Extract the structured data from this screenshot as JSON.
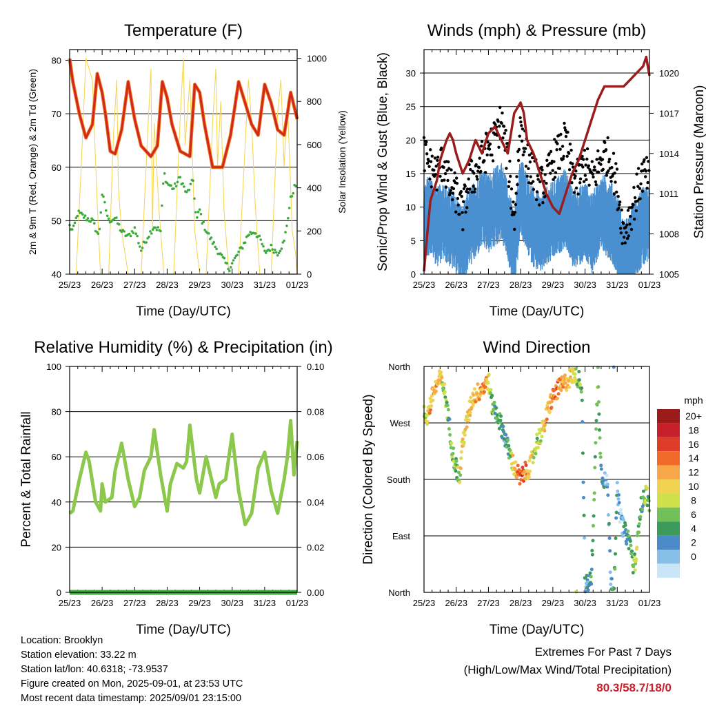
{
  "ticks_x": [
    "25/23",
    "26/23",
    "27/23",
    "28/23",
    "29/23",
    "30/23",
    "31/23",
    "01/23"
  ],
  "xlabel": "Time (Day/UTC)",
  "chart_data": [
    {
      "id": "temperature",
      "type": "line",
      "title": "Temperature (F)",
      "xlabel": "Time (Day/UTC)",
      "ylabel": "2m & 9m T (Red, Orange) & 2m Td (Green)",
      "y2label": "Solar Insolation (Yellow)",
      "ylim": [
        40,
        82
      ],
      "y2lim": [
        0,
        1040
      ],
      "yticks": [
        40,
        50,
        60,
        70,
        80
      ],
      "y2ticks": [
        0,
        200,
        400,
        600,
        800,
        1000
      ],
      "grid": true,
      "colors": {
        "t2m": "#d0281e",
        "t9m": "#f07a1a",
        "td2m": "#3daa3d",
        "solar": "#f6d34a"
      },
      "series": [
        {
          "key": "t2m",
          "x": [
            0,
            0.1,
            0.3,
            0.5,
            0.7,
            0.85,
            1.0,
            1.1,
            1.25,
            1.4,
            1.6,
            1.8,
            2.0,
            2.2,
            2.5,
            2.7,
            2.85,
            3.0,
            3.15,
            3.4,
            3.7,
            3.85,
            4.0,
            4.15,
            4.4,
            4.7,
            4.95,
            5.2,
            5.4,
            5.6,
            5.8,
            6.0,
            6.2,
            6.4,
            6.6,
            6.8,
            7.0
          ],
          "y": [
            80.3,
            76,
            70,
            65.5,
            68,
            77.5,
            74,
            70,
            63,
            62.5,
            67,
            76,
            69,
            64,
            62,
            64,
            76,
            73,
            68,
            63,
            62,
            75.5,
            74,
            68,
            60,
            60,
            66,
            76,
            72,
            68,
            66,
            75.5,
            72,
            67,
            66,
            74,
            69
          ]
        },
        {
          "key": "td2m",
          "x": [
            0,
            0.1,
            0.25,
            0.5,
            0.7,
            0.9,
            1.0,
            1.2,
            1.4,
            1.6,
            1.8,
            2.0,
            2.2,
            2.4,
            2.6,
            2.8,
            2.9,
            3.0,
            3.2,
            3.4,
            3.6,
            3.8,
            3.9,
            4.0,
            4.1,
            4.3,
            4.5,
            4.7,
            4.9,
            5.1,
            5.3,
            5.5,
            5.7,
            5.9,
            6.0,
            6.2,
            6.4,
            6.6,
            6.8,
            6.9,
            7.0
          ],
          "y": [
            49,
            48,
            51.5,
            50.5,
            50,
            47,
            55,
            50,
            50.5,
            48,
            47,
            48.5,
            44.5,
            47,
            49,
            48,
            59,
            57,
            56,
            58,
            55,
            57.5,
            50,
            52,
            49.5,
            47,
            45,
            43,
            41,
            43,
            45,
            47.5,
            48,
            46,
            44,
            45,
            44,
            46,
            54,
            56,
            57
          ]
        },
        {
          "key": "solar",
          "x": [
            0,
            0.2,
            0.35,
            0.5,
            0.7,
            0.85,
            0.95,
            1.0,
            1.2,
            1.35,
            1.45,
            1.5,
            1.6,
            1.8,
            1.9,
            2.0,
            2.2,
            2.4,
            2.5,
            2.55,
            2.6,
            2.75,
            2.9,
            3.0,
            3.2,
            3.4,
            3.5,
            3.55,
            3.7,
            3.85,
            4.0,
            4.2,
            4.4,
            4.5,
            4.55,
            4.65,
            4.75,
            4.9,
            5.2,
            5.4,
            5.5,
            5.6,
            5.7,
            5.85,
            6.2,
            6.4,
            6.5,
            6.6,
            6.7,
            6.85,
            6.95,
            7.0
          ],
          "y": [
            0,
            0,
            480,
            1000,
            900,
            320,
            0,
            0,
            0,
            650,
            900,
            400,
            200,
            0,
            0,
            0,
            0,
            650,
            950,
            200,
            700,
            300,
            0,
            0,
            0,
            720,
            1000,
            600,
            900,
            200,
            0,
            0,
            700,
            950,
            500,
            800,
            300,
            0,
            0,
            600,
            900,
            700,
            350,
            0,
            0,
            750,
            900,
            500,
            800,
            200,
            100,
            0
          ]
        }
      ]
    },
    {
      "id": "winds-pressure",
      "type": "scatter",
      "title": "Winds (mph) & Pressure (mb)",
      "xlabel": "Time (Day/UTC)",
      "ylabel": "Sonic/Prop Wind & Gust (Blue, Black)",
      "y2label": "Station Pressure (Maroon)",
      "ylim": [
        0,
        33.5
      ],
      "y2lim": [
        1005,
        1021.75
      ],
      "yticks": [
        0,
        5,
        10,
        15,
        20,
        25,
        30
      ],
      "y2ticks": [
        1005,
        1008,
        1011,
        1014,
        1017,
        1020
      ],
      "grid": true,
      "colors": {
        "wind": "#4a8fd0",
        "gust": "#000000",
        "pressure": "#9b1c1c"
      },
      "series": [
        {
          "key": "wind",
          "x": [
            0,
            0.2,
            0.4,
            0.6,
            0.8,
            1.0,
            1.2,
            1.4,
            1.6,
            1.8,
            2.0,
            2.2,
            2.4,
            2.6,
            2.8,
            3.0,
            3.2,
            3.4,
            3.6,
            3.8,
            4.0,
            4.2,
            4.4,
            4.6,
            4.8,
            5.0,
            5.2,
            5.4,
            5.6,
            5.8,
            6.0,
            6.2,
            6.4,
            6.6,
            6.8,
            7.0
          ],
          "y": [
            10,
            11,
            9,
            10,
            9,
            8,
            6,
            9,
            10,
            12,
            11,
            12,
            13,
            10,
            5,
            14,
            11,
            9,
            8,
            9,
            10,
            11,
            12,
            9,
            9,
            10,
            8,
            10,
            11,
            10,
            8,
            4,
            5,
            8,
            9,
            9
          ]
        },
        {
          "key": "gust",
          "x": [
            0,
            0.2,
            0.4,
            0.6,
            0.8,
            1.0,
            1.2,
            1.4,
            1.6,
            1.8,
            2.0,
            2.2,
            2.4,
            2.6,
            2.8,
            3.0,
            3.2,
            3.4,
            3.6,
            3.8,
            4.0,
            4.2,
            4.4,
            4.6,
            4.8,
            5.0,
            5.2,
            5.4,
            5.6,
            5.8,
            6.0,
            6.2,
            6.4,
            6.6,
            6.8,
            7.0
          ],
          "y": [
            18,
            16,
            15,
            17,
            13,
            12,
            9,
            14,
            15,
            17,
            19,
            20,
            23,
            17,
            8,
            23,
            17,
            15,
            13,
            14,
            17,
            18,
            20,
            15,
            14,
            17,
            14,
            16,
            18,
            17,
            13,
            6,
            9,
            12,
            15,
            14
          ]
        },
        {
          "key": "pressure",
          "x": [
            0,
            0.1,
            0.2,
            0.4,
            0.5,
            0.7,
            0.8,
            0.9,
            1.0,
            1.2,
            1.4,
            1.6,
            1.8,
            2.0,
            2.2,
            2.4,
            2.6,
            2.8,
            3.0,
            3.1,
            3.2,
            3.4,
            3.6,
            3.8,
            4.0,
            4.2,
            4.4,
            4.6,
            4.8,
            5.0,
            5.2,
            5.4,
            5.6,
            5.8,
            6.0,
            6.2,
            6.4,
            6.6,
            6.8,
            6.9,
            7.0
          ],
          "y": [
            1005.2,
            1008,
            1010.5,
            1012,
            1013.5,
            1015,
            1015.5,
            1015,
            1014,
            1012.5,
            1013.5,
            1015,
            1014,
            1015.5,
            1016,
            1015,
            1014,
            1017,
            1017.8,
            1017,
            1015,
            1014,
            1012.5,
            1011,
            1010,
            1009.5,
            1011,
            1012.5,
            1013.5,
            1015,
            1016.5,
            1018,
            1019,
            1019,
            1019,
            1019,
            1019.5,
            1020,
            1020.5,
            1021.2,
            1019.8
          ]
        }
      ]
    },
    {
      "id": "humidity-precip",
      "type": "line",
      "title": "Relative Humidity (%) & Precipitation (in)",
      "xlabel": "Time (Day/UTC)",
      "ylabel": "Percent & Total Rainfall",
      "ylim": [
        0,
        100
      ],
      "y2lim": [
        0,
        0.1
      ],
      "yticks": [
        0,
        20,
        40,
        60,
        80,
        100
      ],
      "y2ticks": [
        "0.00",
        "0.02",
        "0.04",
        "0.06",
        "0.08",
        "0.10"
      ],
      "grid": true,
      "colors": {
        "rh": "#8cc84b",
        "precip": "#3daa3d"
      },
      "series": [
        {
          "key": "rh",
          "x": [
            0,
            0.1,
            0.3,
            0.5,
            0.6,
            0.8,
            0.95,
            1.0,
            1.1,
            1.3,
            1.4,
            1.6,
            1.8,
            2.0,
            2.15,
            2.3,
            2.5,
            2.6,
            2.8,
            3.0,
            3.1,
            3.3,
            3.5,
            3.6,
            3.7,
            3.9,
            4.0,
            4.2,
            4.4,
            4.5,
            4.6,
            4.8,
            5.0,
            5.2,
            5.4,
            5.6,
            5.8,
            6.0,
            6.2,
            6.4,
            6.6,
            6.7,
            6.8,
            6.9,
            7.0
          ],
          "y": [
            35,
            36,
            50,
            62,
            58,
            40,
            36,
            48,
            40,
            42,
            54,
            66,
            50,
            38,
            42,
            54,
            60,
            72,
            52,
            36,
            48,
            57,
            55,
            58,
            74,
            50,
            44,
            60,
            48,
            42,
            48,
            50,
            70,
            45,
            30,
            35,
            55,
            62,
            45,
            35,
            50,
            60,
            76,
            52,
            67
          ]
        },
        {
          "key": "precip",
          "x": [
            0,
            7
          ],
          "y": [
            0,
            0
          ]
        }
      ]
    },
    {
      "id": "wind-direction",
      "type": "scatter",
      "title": "Wind Direction",
      "xlabel": "Time (Day/UTC)",
      "ylabel": "Direction (Colored By Speed)",
      "yticks": [
        "North",
        "East",
        "South",
        "West",
        "North"
      ],
      "ylim": [
        0,
        360
      ],
      "grid": true,
      "legend": {
        "title": "mph",
        "position": "right",
        "labels": [
          "20+",
          "18",
          "16",
          "14",
          "12",
          "10",
          "8",
          "6",
          "4",
          "2",
          "0"
        ],
        "colors": [
          "#9b1a1a",
          "#c8202a",
          "#e03c2a",
          "#f06a2a",
          "#f8a848",
          "#f0d250",
          "#cee04a",
          "#72c05a",
          "#3c9a5a",
          "#4a8ac8",
          "#86c0e8",
          "#c8e6f8"
        ]
      },
      "series": [
        {
          "key": "direction",
          "x": [
            0,
            0.1,
            0.2,
            0.3,
            0.5,
            0.6,
            0.7,
            0.8,
            0.9,
            1.0,
            1.1,
            1.2,
            1.5,
            1.7,
            1.9,
            2.0,
            2.1,
            2.3,
            2.5,
            2.6,
            2.8,
            3.0,
            3.1,
            3.3,
            3.5,
            3.7,
            3.9,
            4.1,
            4.3,
            4.5,
            4.7,
            4.8,
            4.9,
            5.0,
            5.2,
            5.4,
            5.5,
            5.6,
            5.7,
            5.8,
            5.9,
            6.0,
            6.1,
            6.2,
            6.4,
            6.5,
            6.6,
            6.7,
            6.9,
            7.0
          ],
          "y": [
            285,
            280,
            300,
            320,
            340,
            330,
            300,
            260,
            220,
            200,
            180,
            240,
            310,
            320,
            330,
            340,
            300,
            280,
            250,
            230,
            200,
            180,
            190,
            200,
            240,
            260,
            300,
            320,
            330,
            340,
            350,
            340,
            330,
            10,
            20,
            350,
            190,
            180,
            170,
            20,
            10,
            160,
            120,
            100,
            80,
            40,
            60,
            130,
            160,
            140
          ],
          "speed": [
            8,
            10,
            14,
            14,
            12,
            10,
            8,
            6,
            8,
            8,
            10,
            12,
            12,
            14,
            14,
            12,
            8,
            6,
            4,
            6,
            12,
            18,
            16,
            12,
            8,
            12,
            14,
            16,
            14,
            12,
            10,
            8,
            6,
            4,
            6,
            8,
            6,
            4,
            2,
            4,
            6,
            4,
            2,
            4,
            6,
            8,
            10,
            6,
            8,
            6
          ]
        }
      ]
    }
  ],
  "footer": {
    "location": "Location: Brooklyn",
    "elevation": "Station elevation: 33.22 m",
    "latlon": "Station lat/lon: 40.6318; -73.9537",
    "created": "Figure created on Mon, 2025-09-01, at 23:53 UTC",
    "recent": "Most recent data timestamp: 2025/09/01 23:15:00",
    "extremes_title": "Extremes For Past 7 Days",
    "extremes_subtitle": "(High/Low/Max Wind/Total Precipitation)",
    "extremes_values": "80.3/58.7/18/0"
  }
}
